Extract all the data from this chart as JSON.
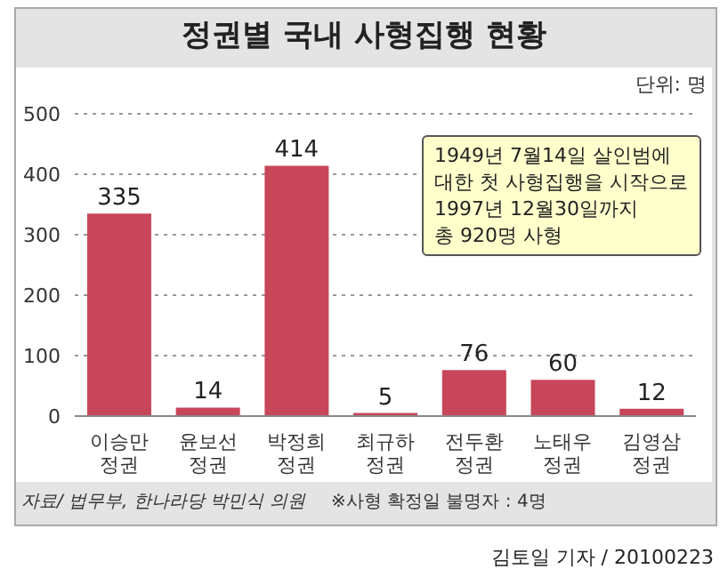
{
  "chart_data": {
    "type": "bar",
    "title": "정권별 국내 사형집행 현황",
    "categories": [
      "이승만\n정권",
      "윤보선\n정권",
      "박정희\n정권",
      "최규하\n정권",
      "전두환\n정권",
      "노태우\n정권",
      "김영삼\n정권"
    ],
    "values": [
      335,
      14,
      414,
      5,
      76,
      60,
      12
    ],
    "color": "#c8465a",
    "ylim": [
      0,
      500
    ],
    "yticks": [
      0,
      100,
      200,
      300,
      400,
      500
    ],
    "grid": "y",
    "data_labels": true,
    "annotations": [
      "단위: 명",
      "1949년 7월14일 살인범에\n대한 첫 사형집행을 시작으로\n1997년 12월30일까지\n총 920명 사형",
      "자료/ 법무부, 한나라당 박민식 의원",
      "※사형 확정일 불명자 : 4명",
      "김토일 기자 / 20100223"
    ]
  }
}
